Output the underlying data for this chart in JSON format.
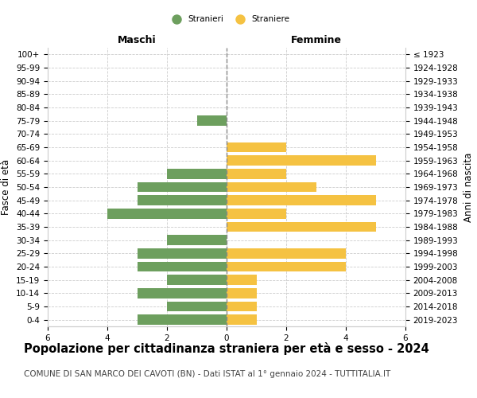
{
  "age_groups": [
    "0-4",
    "5-9",
    "10-14",
    "15-19",
    "20-24",
    "25-29",
    "30-34",
    "35-39",
    "40-44",
    "45-49",
    "50-54",
    "55-59",
    "60-64",
    "65-69",
    "70-74",
    "75-79",
    "80-84",
    "85-89",
    "90-94",
    "95-99",
    "100+"
  ],
  "birth_years": [
    "2019-2023",
    "2014-2018",
    "2009-2013",
    "2004-2008",
    "1999-2003",
    "1994-1998",
    "1989-1993",
    "1984-1988",
    "1979-1983",
    "1974-1978",
    "1969-1973",
    "1964-1968",
    "1959-1963",
    "1954-1958",
    "1949-1953",
    "1944-1948",
    "1939-1943",
    "1934-1938",
    "1929-1933",
    "1924-1928",
    "≤ 1923"
  ],
  "males": [
    3,
    2,
    3,
    2,
    3,
    3,
    2,
    0,
    4,
    3,
    3,
    2,
    0,
    0,
    0,
    1,
    0,
    0,
    0,
    0,
    0
  ],
  "females": [
    1,
    1,
    1,
    1,
    4,
    4,
    0,
    5,
    2,
    5,
    3,
    2,
    5,
    2,
    0,
    0,
    0,
    0,
    0,
    0,
    0
  ],
  "male_color": "#6d9f5e",
  "female_color": "#f5c242",
  "center_line_color": "#888888",
  "grid_color": "#cccccc",
  "title": "Popolazione per cittadinanza straniera per età e sesso - 2024",
  "subtitle": "COMUNE DI SAN MARCO DEI CAVOTI (BN) - Dati ISTAT al 1° gennaio 2024 - TUTTITALIA.IT",
  "xlabel_left": "Maschi",
  "xlabel_right": "Femmine",
  "ylabel_left": "Fasce di età",
  "ylabel_right": "Anni di nascita",
  "legend_male": "Stranieri",
  "legend_female": "Straniere",
  "xlim": 6,
  "bar_height": 0.75,
  "background_color": "#ffffff",
  "title_fontsize": 10.5,
  "subtitle_fontsize": 7.5,
  "tick_fontsize": 7.5,
  "label_fontsize": 8.5,
  "header_fontsize": 9
}
